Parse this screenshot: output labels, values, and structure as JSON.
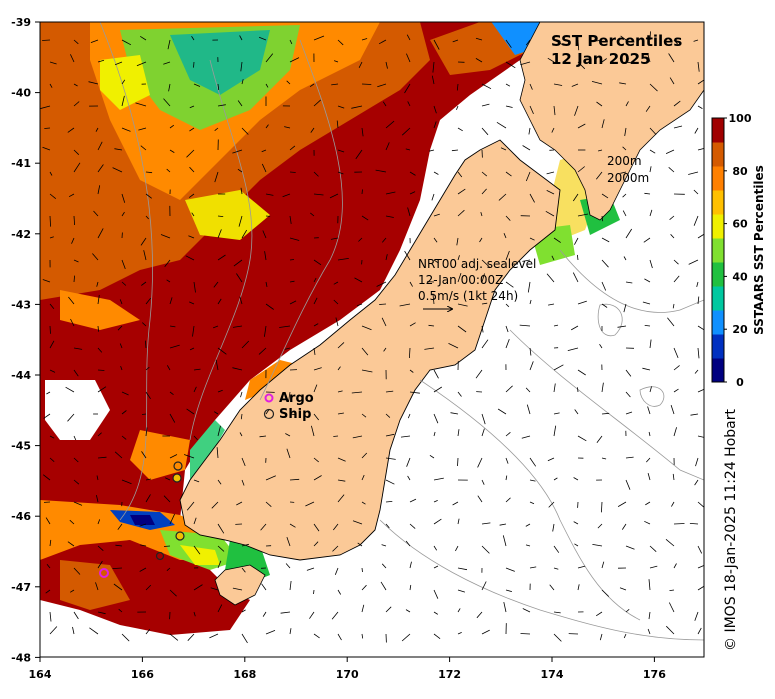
{
  "map": {
    "title_line1": "SST Percentiles",
    "title_line2": "12 Jan 2025",
    "lon_ticks": [
      "164",
      "166",
      "168",
      "170",
      "172",
      "174",
      "176"
    ],
    "lat_ticks": [
      "-39",
      "-40",
      "-41",
      "-42",
      "-43",
      "-44",
      "-45",
      "-46",
      "-47",
      "-48"
    ],
    "contour_labels": [
      "200m",
      "2000m"
    ],
    "current_note": [
      "NRT00 adj. sealevel",
      "12-Jan 00:00Z",
      "0.5m/s (1kt 24h)"
    ],
    "legend": {
      "argo": "Argo",
      "ship": "Ship"
    },
    "credit": "© IMOS 18-Jan-2025 11:24 Hobart",
    "colors": {
      "land": "#fbc997",
      "argo_marker": "#e020e0",
      "ship_marker": "#222222"
    }
  },
  "colorbar": {
    "title": "SSTAARS SST Percentiles",
    "ticks": [
      "0",
      "20",
      "40",
      "60",
      "80",
      "100"
    ],
    "colors": [
      "#000080",
      "#0030c0",
      "#1090ff",
      "#00c8a0",
      "#20c040",
      "#80e030",
      "#f0f000",
      "#ffc000",
      "#ff8000",
      "#d45a00",
      "#a00000"
    ]
  }
}
